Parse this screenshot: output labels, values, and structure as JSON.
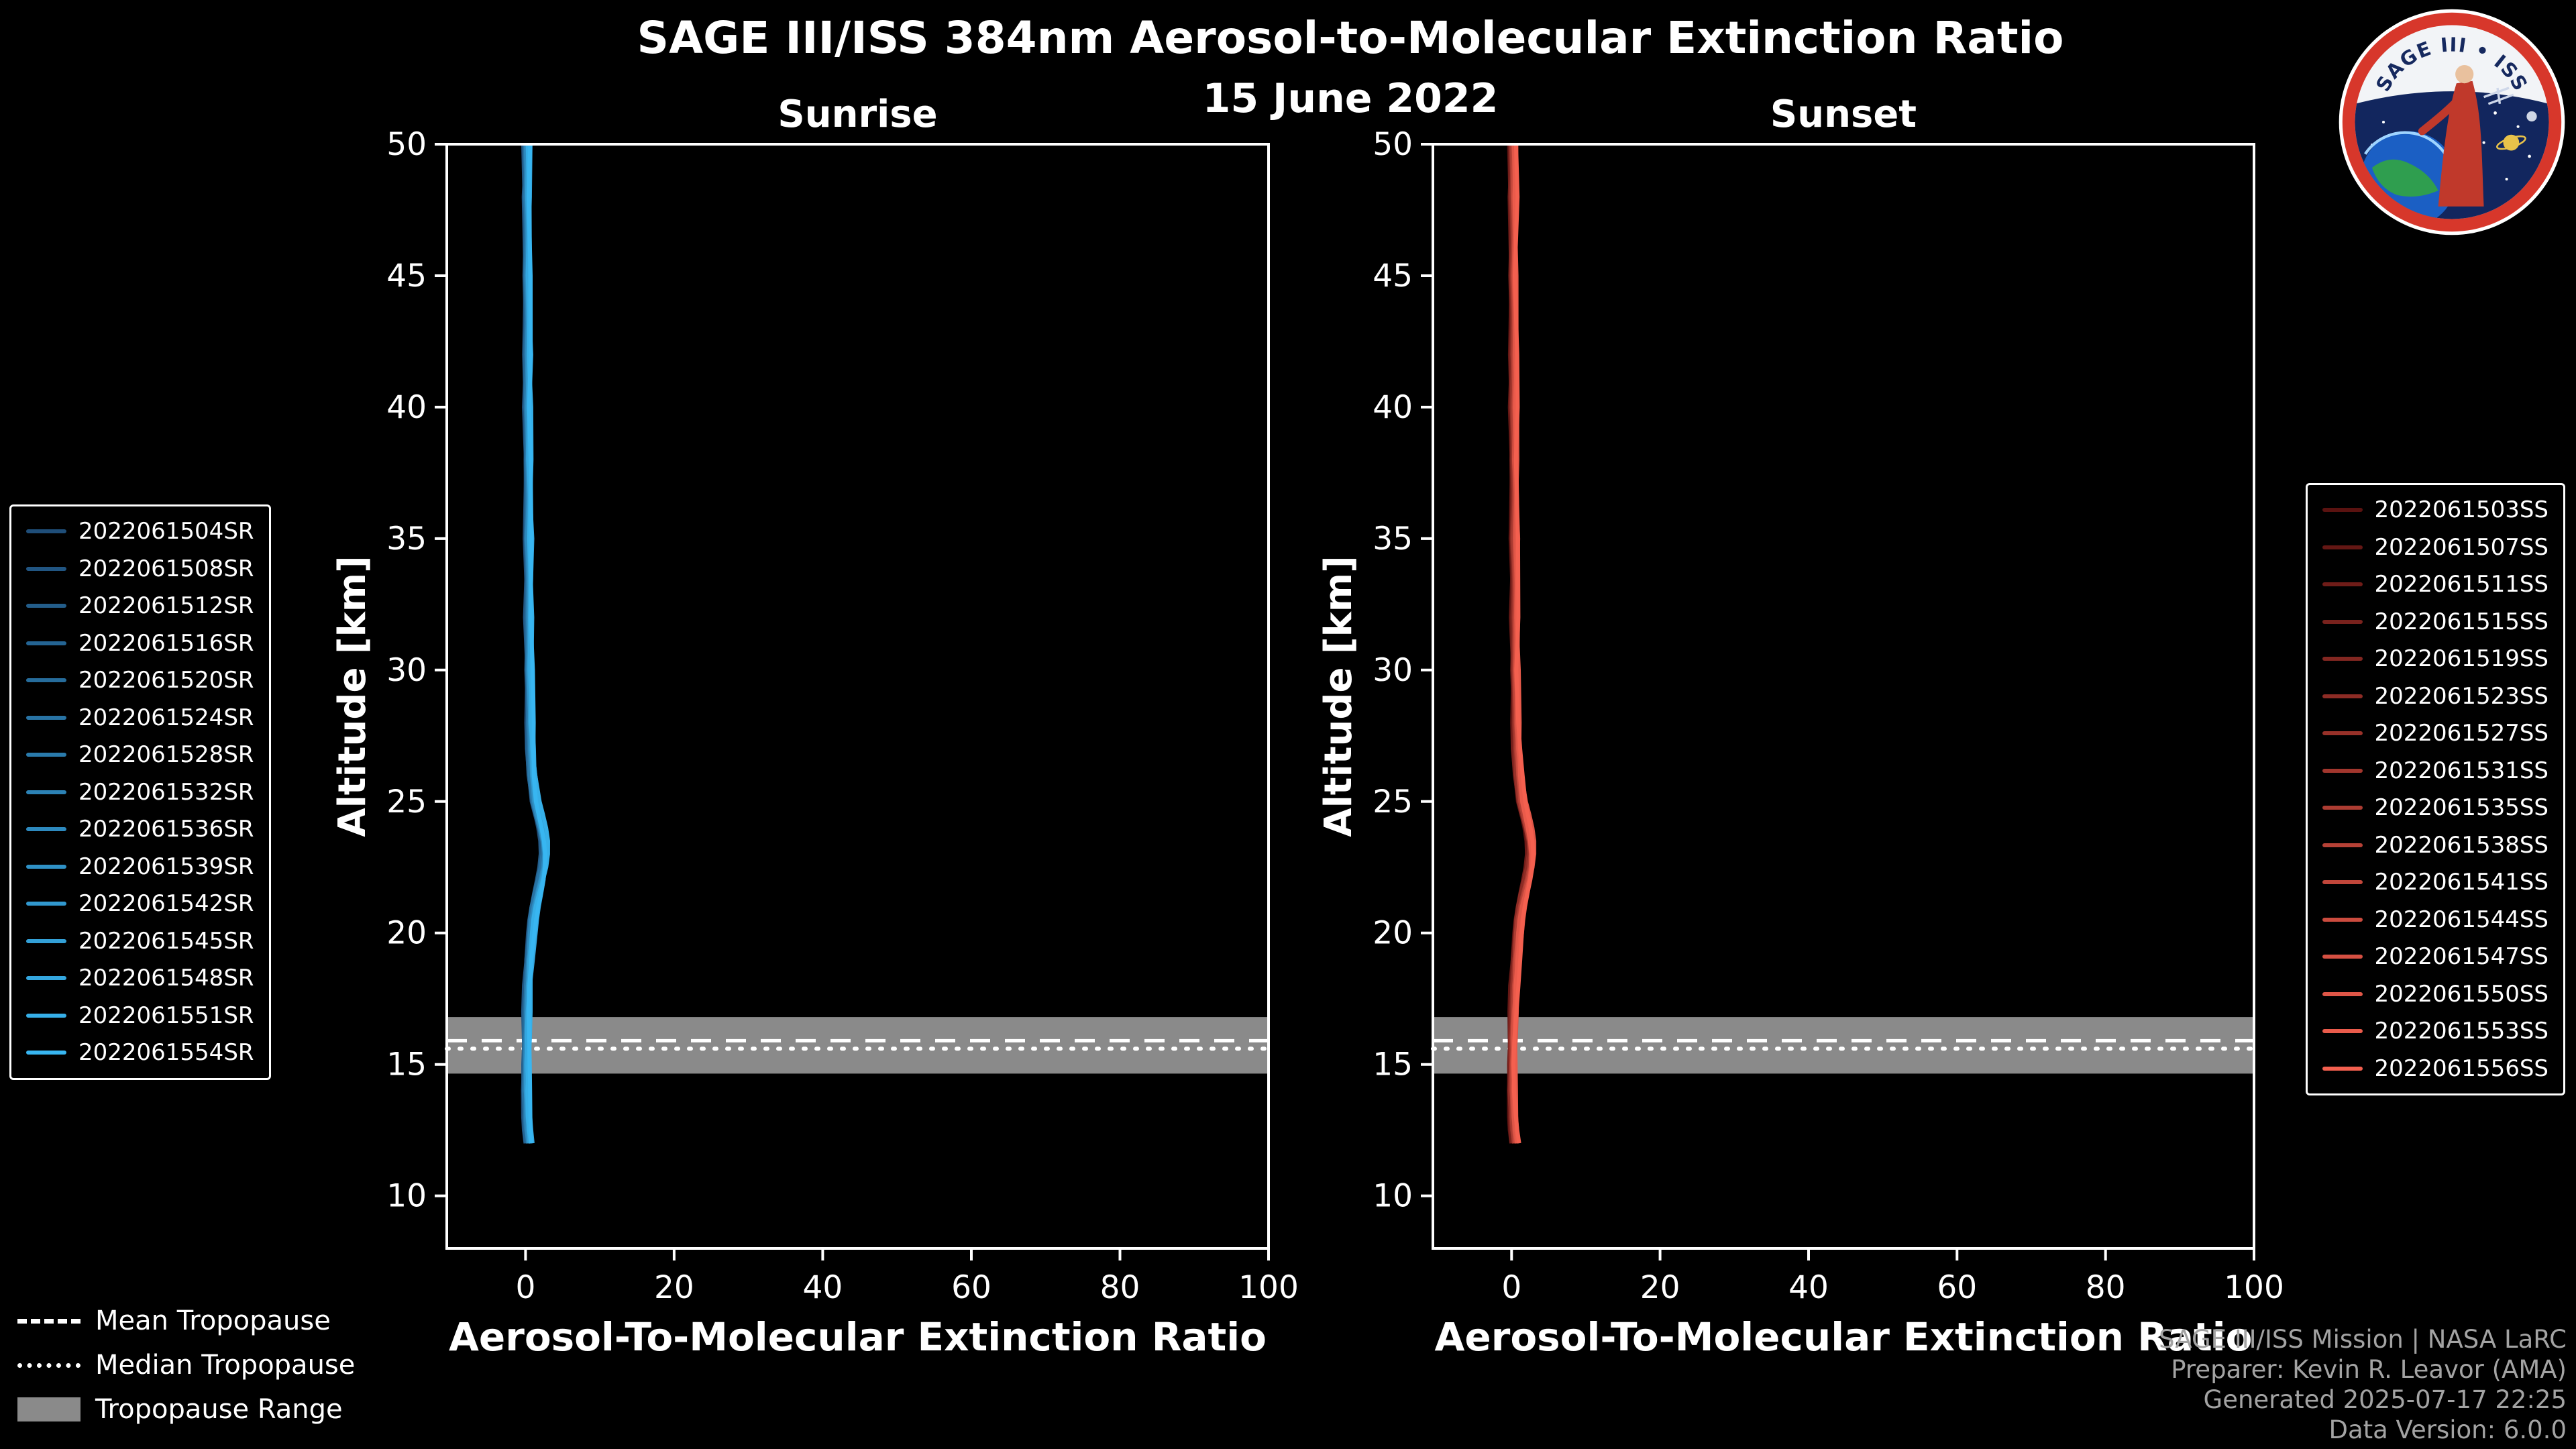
{
  "header": {
    "title": "SAGE III/ISS 384nm Aerosol-to-Molecular Extinction Ratio",
    "date": "15 June 2022"
  },
  "logo": {
    "title": "SAGE III • ISS"
  },
  "tropopause_legend": {
    "mean": "Mean Tropopause",
    "median": "Median Tropopause",
    "range": "Tropopause Range"
  },
  "credits": {
    "line1": "SAGE III/ISS Mission | NASA LaRC",
    "line2": "Preparer: Kevin R. Leavor (AMA)",
    "line3": "Generated 2025-07-17 22:25",
    "line4": "Data Version: 6.0.0"
  },
  "chart_data": [
    {
      "type": "line",
      "title": "Sunrise",
      "xlabel": "Aerosol-To-Molecular Extinction Ratio",
      "ylabel": "Altitude [km]",
      "xlim": [
        -10.6,
        100
      ],
      "ylim": [
        8,
        50
      ],
      "xticks": [
        0,
        20,
        40,
        60,
        80,
        100
      ],
      "yticks": [
        10,
        15,
        20,
        25,
        30,
        35,
        40,
        45,
        50
      ],
      "grid": false,
      "legend_position": "outside-left",
      "color_start": "#1f4e79",
      "color_end": "#38b6f1",
      "tropopause": {
        "mean_km": 15.9,
        "median_km": 15.6,
        "range_km": [
          14.65,
          16.8
        ]
      },
      "profile_altitude_km": [
        12,
        12.5,
        13,
        14,
        15,
        16,
        17,
        18,
        19,
        20,
        20.5,
        21,
        21.5,
        22,
        22.5,
        23,
        23.5,
        24,
        24.5,
        25,
        26,
        27,
        28,
        30,
        32,
        35,
        38,
        40,
        42,
        45,
        48,
        50
      ],
      "profile_ratio": [
        0.5,
        0.3,
        0.2,
        0.1,
        0.1,
        0.15,
        0.2,
        0.3,
        0.5,
        0.8,
        1.0,
        1.3,
        1.7,
        2.1,
        2.4,
        2.5,
        2.4,
        2.1,
        1.7,
        1.3,
        0.9,
        0.7,
        0.6,
        0.5,
        0.45,
        0.4,
        0.35,
        0.3,
        0.3,
        0.25,
        0.2,
        0.2
      ],
      "series": [
        {
          "name": "2022061504SR"
        },
        {
          "name": "2022061508SR"
        },
        {
          "name": "2022061512SR"
        },
        {
          "name": "2022061516SR"
        },
        {
          "name": "2022061520SR"
        },
        {
          "name": "2022061524SR"
        },
        {
          "name": "2022061528SR"
        },
        {
          "name": "2022061532SR"
        },
        {
          "name": "2022061536SR"
        },
        {
          "name": "2022061539SR"
        },
        {
          "name": "2022061542SR"
        },
        {
          "name": "2022061545SR"
        },
        {
          "name": "2022061548SR"
        },
        {
          "name": "2022061551SR"
        },
        {
          "name": "2022061554SR"
        }
      ]
    },
    {
      "type": "line",
      "title": "Sunset",
      "xlabel": "Aerosol-To-Molecular Extinction Ratio",
      "ylabel": "Altitude [km]",
      "xlim": [
        -10.6,
        100
      ],
      "ylim": [
        8,
        50
      ],
      "xticks": [
        0,
        20,
        40,
        60,
        80,
        100
      ],
      "yticks": [
        10,
        15,
        20,
        25,
        30,
        35,
        40,
        45,
        50
      ],
      "grid": false,
      "legend_position": "outside-right",
      "color_start": "#5a1210",
      "color_end": "#f4604f",
      "tropopause": {
        "mean_km": 15.9,
        "median_km": 15.6,
        "range_km": [
          14.65,
          16.8
        ]
      },
      "profile_altitude_km": [
        12,
        12.5,
        13,
        14,
        15,
        16,
        17,
        18,
        19,
        20,
        20.5,
        21,
        21.5,
        22,
        22.5,
        23,
        23.5,
        24,
        24.5,
        25,
        26,
        27,
        28,
        30,
        32,
        35,
        38,
        40,
        42,
        45,
        48,
        50
      ],
      "profile_ratio": [
        0.5,
        0.3,
        0.2,
        0.1,
        0.1,
        0.15,
        0.25,
        0.35,
        0.55,
        0.85,
        1.05,
        1.35,
        1.75,
        2.15,
        2.45,
        2.55,
        2.45,
        2.15,
        1.75,
        1.35,
        0.95,
        0.7,
        0.6,
        0.5,
        0.45,
        0.4,
        0.35,
        0.3,
        0.3,
        0.25,
        0.2,
        0.2
      ],
      "series": [
        {
          "name": "2022061503SS"
        },
        {
          "name": "2022061507SS"
        },
        {
          "name": "2022061511SS"
        },
        {
          "name": "2022061515SS"
        },
        {
          "name": "2022061519SS"
        },
        {
          "name": "2022061523SS"
        },
        {
          "name": "2022061527SS"
        },
        {
          "name": "2022061531SS"
        },
        {
          "name": "2022061535SS"
        },
        {
          "name": "2022061538SS"
        },
        {
          "name": "2022061541SS"
        },
        {
          "name": "2022061544SS"
        },
        {
          "name": "2022061547SS"
        },
        {
          "name": "2022061550SS"
        },
        {
          "name": "2022061553SS"
        },
        {
          "name": "2022061556SS"
        }
      ]
    }
  ]
}
